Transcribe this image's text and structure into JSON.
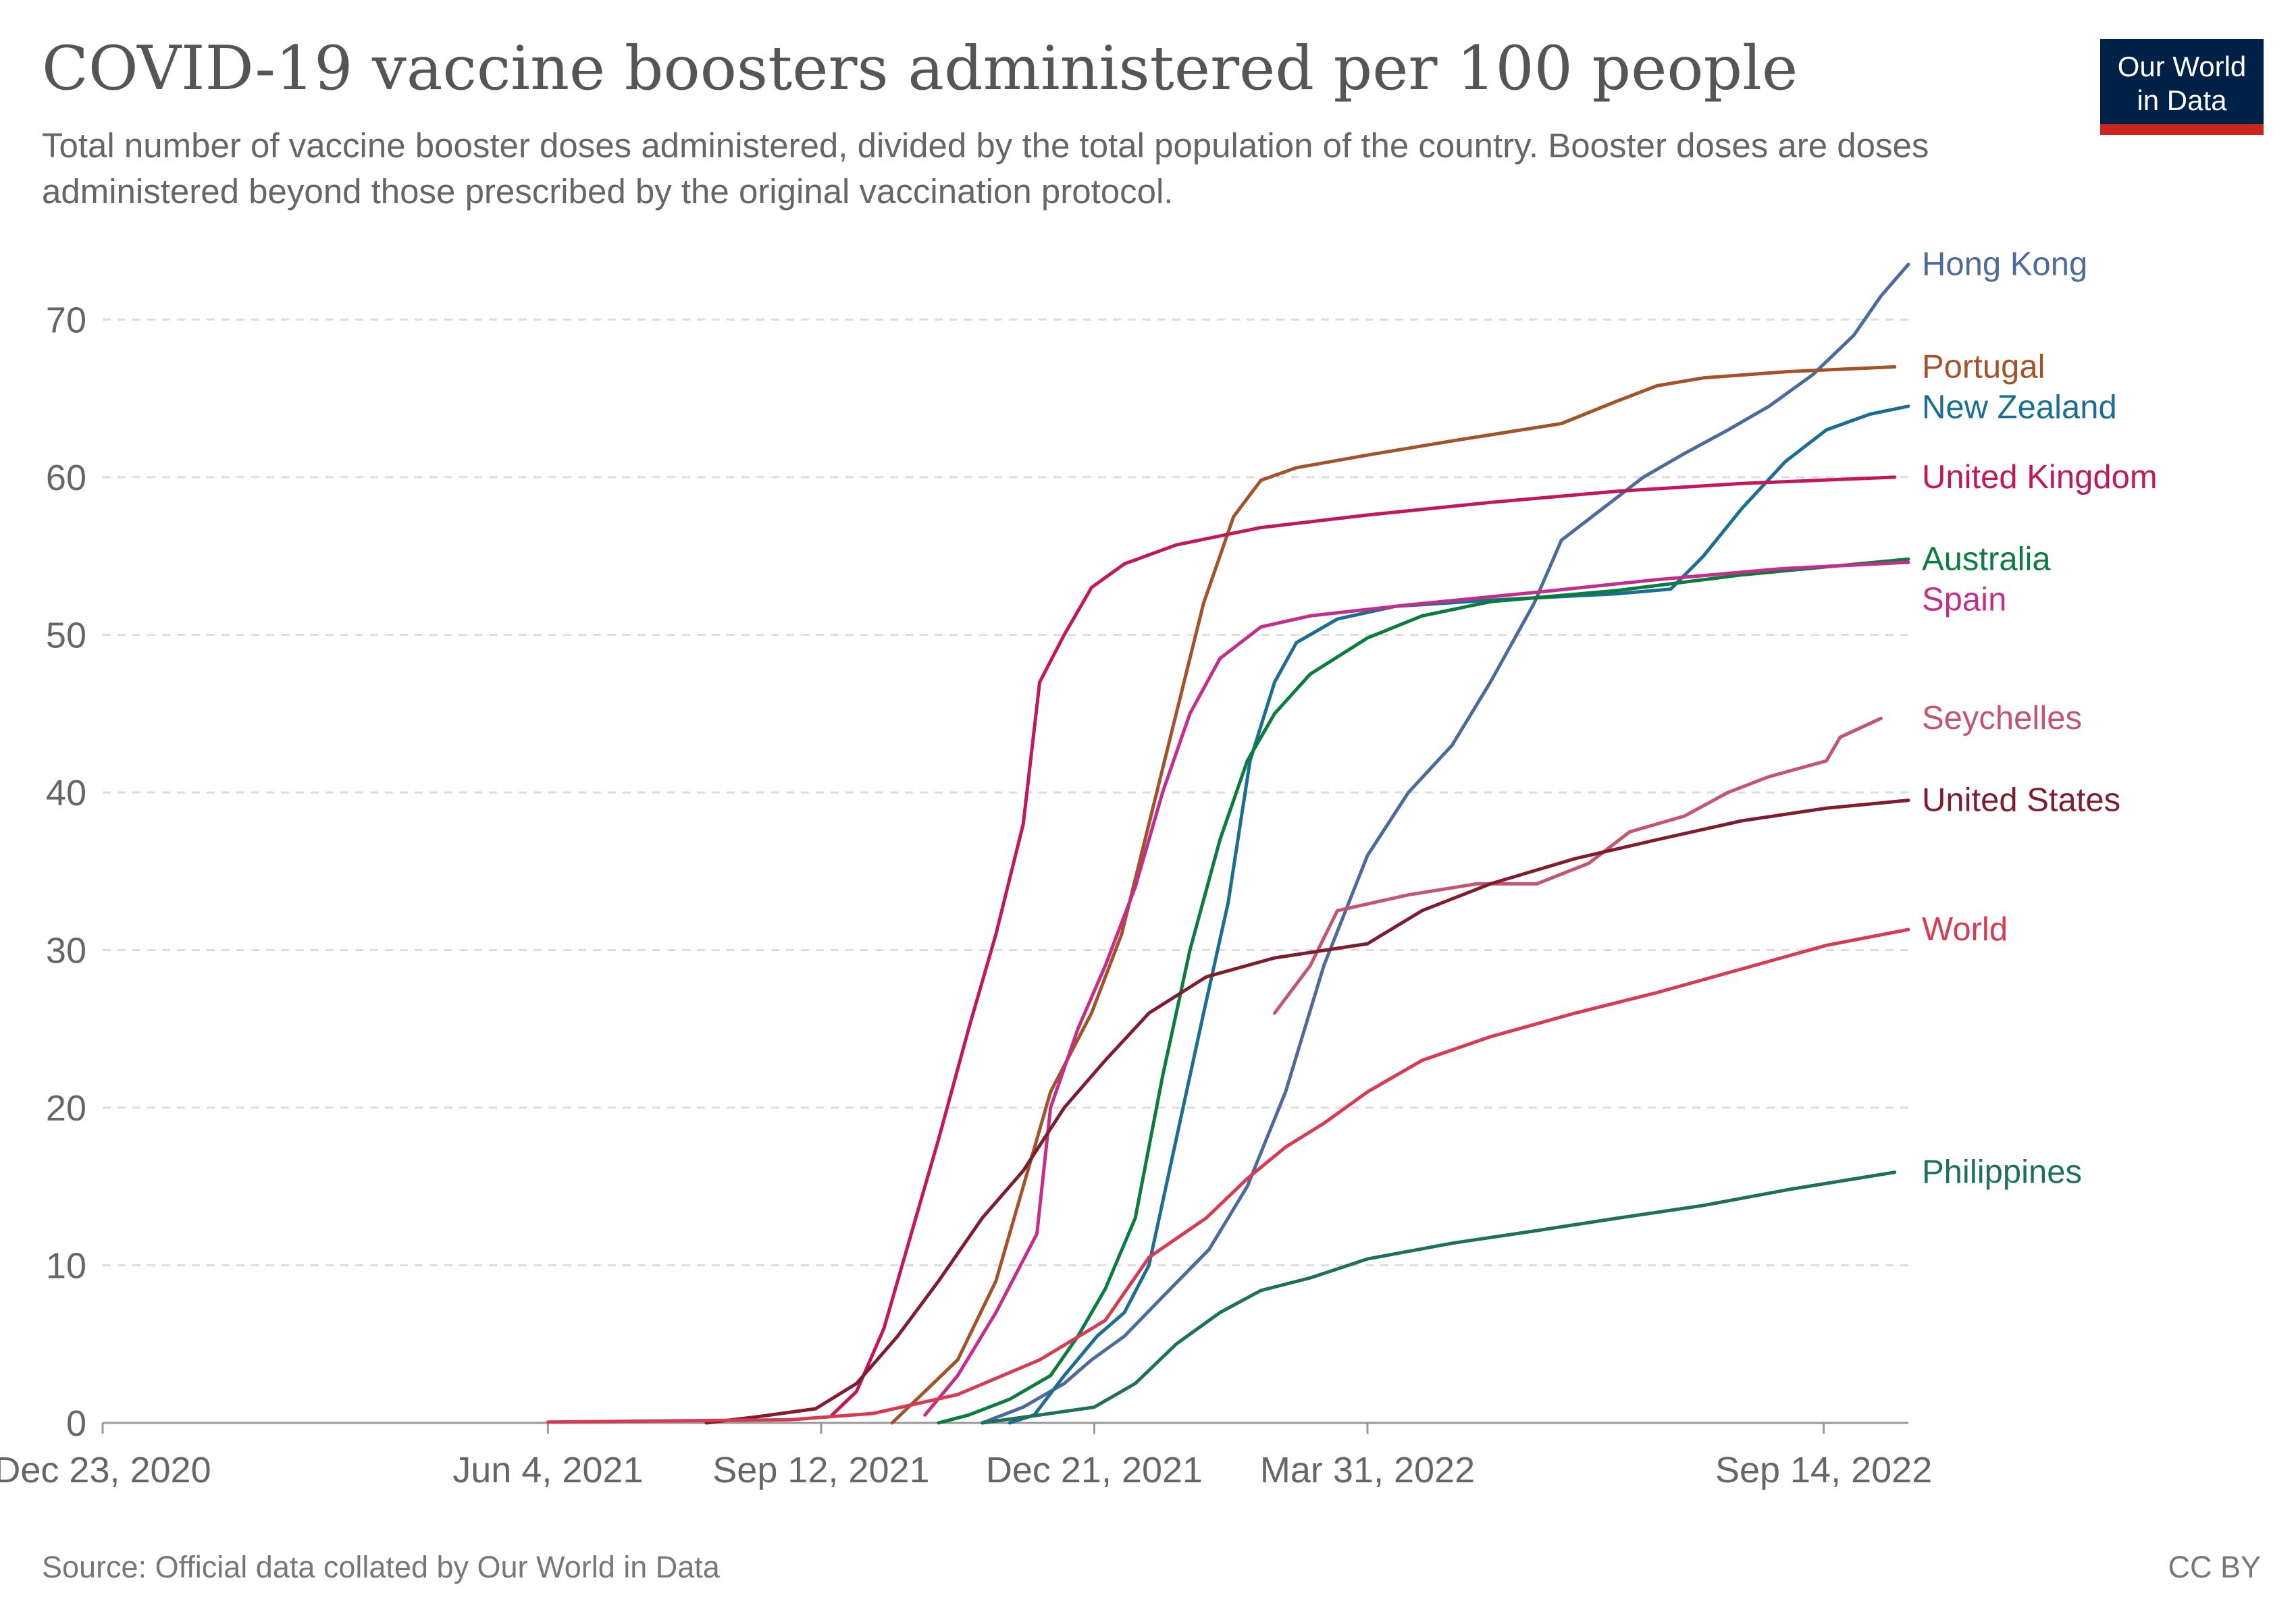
{
  "header": {
    "title": "COVID-19 vaccine boosters administered per 100 people",
    "subtitle": "Total number of vaccine booster doses administered, divided by the total population of the country. Booster doses are doses administered beyond those prescribed by the original vaccination protocol."
  },
  "logo": {
    "line1": "Our World",
    "line2": "in Data",
    "background": "#002147",
    "accent": "#ce261e"
  },
  "footer": {
    "source": "Source: Official data collated by Our World in Data",
    "license": "CC BY"
  },
  "chart_data": {
    "type": "line",
    "title": "COVID-19 vaccine boosters administered per 100 people",
    "subtitle": "Total number of vaccine booster doses administered, divided by the total population of the country. Booster doses are doses administered beyond those prescribed by the original vaccination protocol.",
    "xlabel": "",
    "ylabel": "",
    "x_range": [
      "2020-12-23",
      "2022-10-15"
    ],
    "ylim": [
      0,
      74
    ],
    "y_ticks": [
      0,
      10,
      20,
      30,
      40,
      50,
      60,
      70
    ],
    "x_ticks": [
      {
        "date": "2020-12-23",
        "label": "Dec 23, 2020"
      },
      {
        "date": "2021-06-04",
        "label": "Jun 4, 2021"
      },
      {
        "date": "2021-09-12",
        "label": "Sep 12, 2021"
      },
      {
        "date": "2021-12-21",
        "label": "Dec 21, 2021"
      },
      {
        "date": "2022-03-31",
        "label": "Mar 31, 2022"
      },
      {
        "date": "2022-09-14",
        "label": "Sep 14, 2022"
      }
    ],
    "grid": "horizontal dashed",
    "legend": "inline labels at line ends (right)",
    "series": [
      {
        "name": "Hong Kong",
        "color": "#4c6a9c",
        "points": [
          [
            "2021-11-10",
            0
          ],
          [
            "2021-11-25",
            1
          ],
          [
            "2021-12-10",
            2.5
          ],
          [
            "2021-12-20",
            4
          ],
          [
            "2022-01-01",
            5.5
          ],
          [
            "2022-01-15",
            8
          ],
          [
            "2022-02-01",
            11
          ],
          [
            "2022-02-15",
            15
          ],
          [
            "2022-03-01",
            21
          ],
          [
            "2022-03-15",
            29
          ],
          [
            "2022-03-31",
            36
          ],
          [
            "2022-04-15",
            40
          ],
          [
            "2022-05-01",
            43
          ],
          [
            "2022-05-15",
            47
          ],
          [
            "2022-05-31",
            52
          ],
          [
            "2022-06-10",
            56
          ],
          [
            "2022-06-25",
            58
          ],
          [
            "2022-07-10",
            60
          ],
          [
            "2022-07-25",
            61.5
          ],
          [
            "2022-08-10",
            63
          ],
          [
            "2022-08-25",
            64.5
          ],
          [
            "2022-09-10",
            66.5
          ],
          [
            "2022-09-25",
            69
          ],
          [
            "2022-10-05",
            71.5
          ],
          [
            "2022-10-15",
            73.5
          ]
        ]
      },
      {
        "name": "Portugal",
        "color": "#a2532a",
        "points": [
          [
            "2021-10-08",
            0
          ],
          [
            "2021-10-20",
            2
          ],
          [
            "2021-11-01",
            4
          ],
          [
            "2021-11-15",
            9
          ],
          [
            "2021-11-25",
            15
          ],
          [
            "2021-12-05",
            21
          ],
          [
            "2021-12-20",
            26
          ],
          [
            "2021-12-31",
            31
          ],
          [
            "2022-01-10",
            38
          ],
          [
            "2022-01-20",
            45
          ],
          [
            "2022-01-30",
            52
          ],
          [
            "2022-02-10",
            57.5
          ],
          [
            "2022-02-20",
            59.8
          ],
          [
            "2022-03-05",
            60.6
          ],
          [
            "2022-03-31",
            61.4
          ],
          [
            "2022-05-01",
            62.3
          ],
          [
            "2022-06-10",
            63.4
          ],
          [
            "2022-06-30",
            64.8
          ],
          [
            "2022-07-15",
            65.8
          ],
          [
            "2022-08-01",
            66.3
          ],
          [
            "2022-09-01",
            66.7
          ],
          [
            "2022-10-10",
            67
          ]
        ]
      },
      {
        "name": "New Zealand",
        "color": "#1a6e93",
        "points": [
          [
            "2021-11-20",
            0
          ],
          [
            "2021-11-29",
            0.5
          ],
          [
            "2021-12-10",
            3
          ],
          [
            "2021-12-22",
            5.5
          ],
          [
            "2022-01-01",
            7
          ],
          [
            "2022-01-10",
            10
          ],
          [
            "2022-01-20",
            18
          ],
          [
            "2022-01-30",
            26
          ],
          [
            "2022-02-08",
            33
          ],
          [
            "2022-02-16",
            42
          ],
          [
            "2022-02-25",
            47
          ],
          [
            "2022-03-05",
            49.5
          ],
          [
            "2022-03-20",
            51
          ],
          [
            "2022-04-10",
            51.8
          ],
          [
            "2022-05-15",
            52.2
          ],
          [
            "2022-06-30",
            52.6
          ],
          [
            "2022-07-20",
            52.9
          ],
          [
            "2022-08-01",
            55
          ],
          [
            "2022-08-15",
            58
          ],
          [
            "2022-08-31",
            61
          ],
          [
            "2022-09-15",
            63
          ],
          [
            "2022-10-01",
            64
          ],
          [
            "2022-10-15",
            64.5
          ]
        ]
      },
      {
        "name": "United Kingdom",
        "color": "#c2185b",
        "points": [
          [
            "2021-09-16",
            0.5
          ],
          [
            "2021-09-25",
            2
          ],
          [
            "2021-10-05",
            6
          ],
          [
            "2021-10-15",
            12
          ],
          [
            "2021-10-25",
            18
          ],
          [
            "2021-11-05",
            25
          ],
          [
            "2021-11-15",
            31
          ],
          [
            "2021-11-25",
            38
          ],
          [
            "2021-12-01",
            47
          ],
          [
            "2021-12-10",
            50
          ],
          [
            "2021-12-20",
            53
          ],
          [
            "2022-01-01",
            54.5
          ],
          [
            "2022-01-20",
            55.7
          ],
          [
            "2022-02-20",
            56.8
          ],
          [
            "2022-03-31",
            57.6
          ],
          [
            "2022-05-15",
            58.4
          ],
          [
            "2022-06-30",
            59.1
          ],
          [
            "2022-08-15",
            59.6
          ],
          [
            "2022-10-10",
            60
          ]
        ]
      },
      {
        "name": "Australia",
        "color": "#0a7d3e",
        "points": [
          [
            "2021-10-25",
            0
          ],
          [
            "2021-11-05",
            0.5
          ],
          [
            "2021-11-20",
            1.5
          ],
          [
            "2021-12-05",
            3
          ],
          [
            "2021-12-15",
            5.5
          ],
          [
            "2021-12-25",
            8.5
          ],
          [
            "2022-01-05",
            13
          ],
          [
            "2022-01-15",
            22
          ],
          [
            "2022-01-25",
            30
          ],
          [
            "2022-02-05",
            37
          ],
          [
            "2022-02-15",
            42
          ],
          [
            "2022-02-25",
            45
          ],
          [
            "2022-03-10",
            47.5
          ],
          [
            "2022-03-31",
            49.8
          ],
          [
            "2022-04-20",
            51.2
          ],
          [
            "2022-05-15",
            52.1
          ],
          [
            "2022-06-30",
            52.8
          ],
          [
            "2022-08-15",
            53.8
          ],
          [
            "2022-10-15",
            54.8
          ]
        ]
      },
      {
        "name": "Spain",
        "color": "#c42e8b",
        "points": [
          [
            "2021-10-20",
            0.5
          ],
          [
            "2021-11-01",
            3
          ],
          [
            "2021-11-15",
            7
          ],
          [
            "2021-11-30",
            12
          ],
          [
            "2021-12-05",
            20
          ],
          [
            "2021-12-15",
            25
          ],
          [
            "2021-12-25",
            29
          ],
          [
            "2022-01-05",
            34
          ],
          [
            "2022-01-15",
            40
          ],
          [
            "2022-01-25",
            45
          ],
          [
            "2022-02-05",
            48.5
          ],
          [
            "2022-02-20",
            50.5
          ],
          [
            "2022-03-10",
            51.2
          ],
          [
            "2022-04-15",
            51.9
          ],
          [
            "2022-06-01",
            52.7
          ],
          [
            "2022-07-15",
            53.5
          ],
          [
            "2022-08-30",
            54.2
          ],
          [
            "2022-10-15",
            54.6
          ]
        ]
      },
      {
        "name": "Seychelles",
        "color": "#c2556f",
        "points": [
          [
            "2022-02-25",
            26
          ],
          [
            "2022-03-10",
            29
          ],
          [
            "2022-03-20",
            32.5
          ],
          [
            "2022-04-15",
            33.5
          ],
          [
            "2022-05-10",
            34.2
          ],
          [
            "2022-06-01",
            34.2
          ],
          [
            "2022-06-20",
            35.5
          ],
          [
            "2022-07-05",
            37.5
          ],
          [
            "2022-07-25",
            38.5
          ],
          [
            "2022-08-10",
            40
          ],
          [
            "2022-08-25",
            41
          ],
          [
            "2022-09-15",
            42
          ],
          [
            "2022-09-20",
            43.5
          ],
          [
            "2022-10-05",
            44.7
          ]
        ]
      },
      {
        "name": "United States",
        "color": "#7f1d2e",
        "points": [
          [
            "2021-08-01",
            0
          ],
          [
            "2021-08-20",
            0.4
          ],
          [
            "2021-09-10",
            0.9
          ],
          [
            "2021-09-25",
            2.5
          ],
          [
            "2021-10-10",
            5.5
          ],
          [
            "2021-10-25",
            9
          ],
          [
            "2021-11-10",
            13
          ],
          [
            "2021-11-25",
            16
          ],
          [
            "2021-12-10",
            20
          ],
          [
            "2021-12-25",
            23
          ],
          [
            "2022-01-10",
            26
          ],
          [
            "2022-01-31",
            28.3
          ],
          [
            "2022-02-25",
            29.5
          ],
          [
            "2022-03-31",
            30.4
          ],
          [
            "2022-04-20",
            32.5
          ],
          [
            "2022-05-15",
            34.2
          ],
          [
            "2022-06-15",
            35.8
          ],
          [
            "2022-07-15",
            37
          ],
          [
            "2022-08-15",
            38.2
          ],
          [
            "2022-09-15",
            39
          ],
          [
            "2022-10-15",
            39.5
          ]
        ]
      },
      {
        "name": "World",
        "color": "#d73b53",
        "points": [
          [
            "2021-06-04",
            0.05
          ],
          [
            "2021-09-01",
            0.2
          ],
          [
            "2021-10-01",
            0.6
          ],
          [
            "2021-11-01",
            1.8
          ],
          [
            "2021-12-01",
            4
          ],
          [
            "2021-12-25",
            6.5
          ],
          [
            "2022-01-10",
            10.5
          ],
          [
            "2022-01-31",
            13
          ],
          [
            "2022-02-15",
            15.5
          ],
          [
            "2022-03-01",
            17.5
          ],
          [
            "2022-03-15",
            19
          ],
          [
            "2022-03-31",
            21
          ],
          [
            "2022-04-20",
            23
          ],
          [
            "2022-05-15",
            24.5
          ],
          [
            "2022-06-15",
            26
          ],
          [
            "2022-07-15",
            27.3
          ],
          [
            "2022-08-15",
            28.8
          ],
          [
            "2022-09-15",
            30.3
          ],
          [
            "2022-10-15",
            31.3
          ]
        ]
      },
      {
        "name": "Philippines",
        "color": "#1e6f5c",
        "points": [
          [
            "2021-11-10",
            0
          ],
          [
            "2021-12-01",
            0.5
          ],
          [
            "2021-12-21",
            1
          ],
          [
            "2022-01-05",
            2.5
          ],
          [
            "2022-01-20",
            5
          ],
          [
            "2022-02-05",
            7
          ],
          [
            "2022-02-20",
            8.4
          ],
          [
            "2022-03-10",
            9.2
          ],
          [
            "2022-03-31",
            10.4
          ],
          [
            "2022-05-01",
            11.4
          ],
          [
            "2022-06-01",
            12.2
          ],
          [
            "2022-07-01",
            13
          ],
          [
            "2022-08-01",
            13.8
          ],
          [
            "2022-09-01",
            14.8
          ],
          [
            "2022-10-10",
            15.9
          ]
        ]
      }
    ]
  }
}
